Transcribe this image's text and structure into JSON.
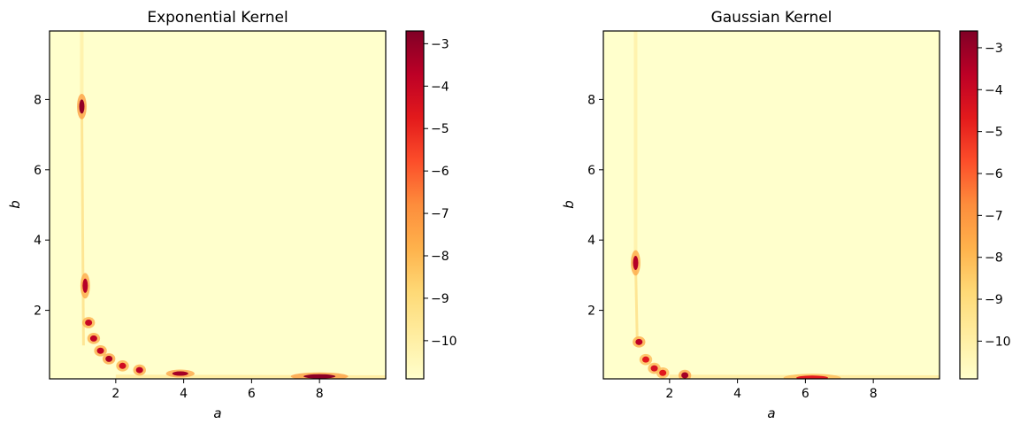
{
  "chart_data": [
    {
      "type": "heatmap",
      "title": "Exponential Kernel",
      "xlabel": "a",
      "ylabel": "b",
      "xlim": [
        0.05,
        9.95
      ],
      "ylim": [
        0.05,
        9.95
      ],
      "xticks": [
        2,
        4,
        6,
        8
      ],
      "yticks": [
        2,
        4,
        6,
        8
      ],
      "xtick_labels": [
        "2",
        "4",
        "6",
        "8"
      ],
      "ytick_labels": [
        "2",
        "4",
        "6",
        "8"
      ],
      "colormap": "YlOrRd",
      "colorbar": {
        "range": [
          -10.9,
          -2.7
        ],
        "ticks": [
          -3,
          -4,
          -5,
          -6,
          -7,
          -8,
          -9,
          -10
        ],
        "tick_labels": [
          "−3",
          "−4",
          "−5",
          "−6",
          "−7",
          "−8",
          "−9",
          "−10"
        ]
      },
      "peaks": [
        {
          "a": 1.0,
          "b": 7.8,
          "value": -3.0
        },
        {
          "a": 1.1,
          "b": 2.7,
          "value": -3.6
        },
        {
          "a": 1.2,
          "b": 1.65,
          "value": -4.0
        },
        {
          "a": 1.35,
          "b": 1.2,
          "value": -3.8
        },
        {
          "a": 1.55,
          "b": 0.85,
          "value": -3.8
        },
        {
          "a": 1.8,
          "b": 0.62,
          "value": -3.4
        },
        {
          "a": 2.2,
          "b": 0.42,
          "value": -4.2
        },
        {
          "a": 2.7,
          "b": 0.3,
          "value": -3.7
        },
        {
          "a": 3.9,
          "b": 0.2,
          "value": -3.3
        },
        {
          "a": 8.0,
          "b": 0.12,
          "value": -2.9
        }
      ]
    },
    {
      "type": "heatmap",
      "title": "Gaussian Kernel",
      "xlabel": "a",
      "ylabel": "b",
      "xlim": [
        0.05,
        9.95
      ],
      "ylim": [
        0.05,
        9.95
      ],
      "xticks": [
        2,
        4,
        6,
        8
      ],
      "yticks": [
        2,
        4,
        6,
        8
      ],
      "xtick_labels": [
        "2",
        "4",
        "6",
        "8"
      ],
      "ytick_labels": [
        "2",
        "4",
        "6",
        "8"
      ],
      "colormap": "YlOrRd",
      "colorbar": {
        "range": [
          -10.9,
          -2.6
        ],
        "ticks": [
          -3,
          -4,
          -5,
          -6,
          -7,
          -8,
          -9,
          -10
        ],
        "tick_labels": [
          "−3",
          "−4",
          "−5",
          "−6",
          "−7",
          "−8",
          "−9",
          "−10"
        ]
      },
      "peaks": [
        {
          "a": 1.0,
          "b": 3.35,
          "value": -3.5
        },
        {
          "a": 1.1,
          "b": 1.1,
          "value": -3.6
        },
        {
          "a": 1.3,
          "b": 0.6,
          "value": -4.6
        },
        {
          "a": 1.55,
          "b": 0.35,
          "value": -4.3
        },
        {
          "a": 1.8,
          "b": 0.22,
          "value": -4.6
        },
        {
          "a": 2.45,
          "b": 0.15,
          "value": -3.2
        },
        {
          "a": 6.2,
          "b": 0.08,
          "value": -4.6
        }
      ]
    }
  ]
}
